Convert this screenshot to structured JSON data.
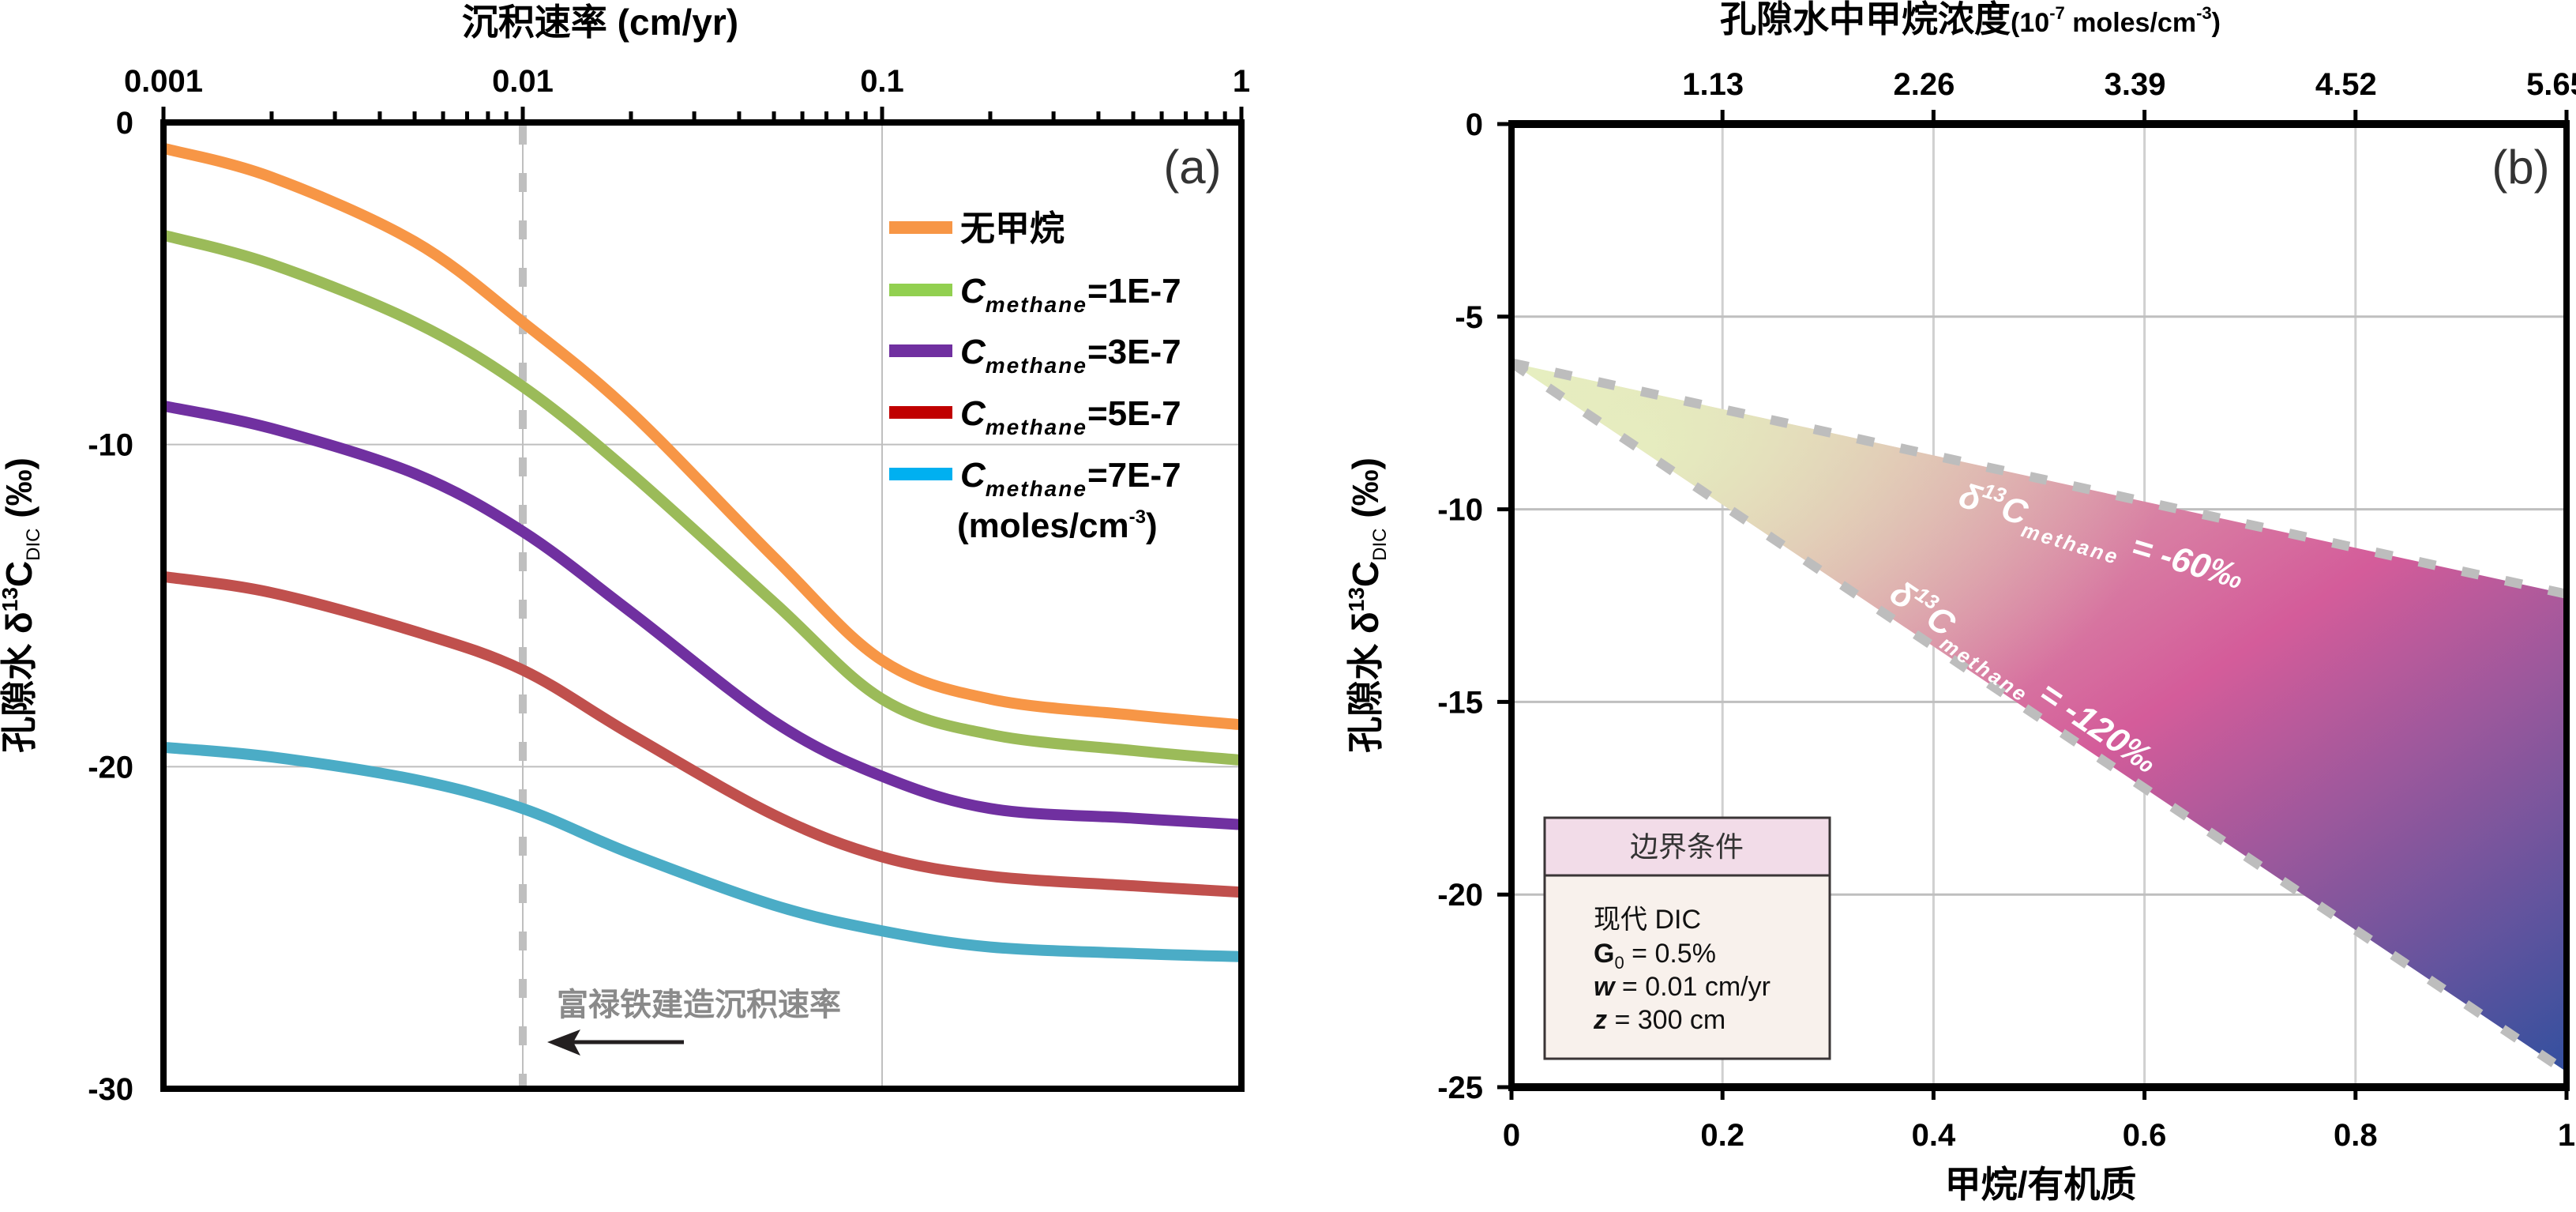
{
  "chart_data": [
    {
      "panel": "(a)",
      "type": "line",
      "xscale": "log",
      "xlabel": "沉积速率 (cm/yr)",
      "xlabel_position": "top",
      "ylabel": "孔隙水 δ13C_DIC (‰)",
      "ylabel_parts": {
        "prefix": "孔隙水 δ",
        "sup": "13",
        "main": "C",
        "sub": "DIC",
        "suffix": " (‰)"
      },
      "xlim": [
        0.001,
        1
      ],
      "ylim": [
        -30,
        0
      ],
      "xticks": [
        0.001,
        0.01,
        0.1,
        1
      ],
      "xtick_labels": [
        "0.001",
        "0.01",
        "0.1",
        "1"
      ],
      "yticks": [
        0,
        -10,
        -20,
        -30
      ],
      "ytick_labels": [
        "0",
        "-10",
        "-20",
        "-30"
      ],
      "grid": true,
      "x": [
        0.001,
        0.002,
        0.005,
        0.01,
        0.02,
        0.05,
        0.1,
        0.2,
        0.5,
        1
      ],
      "series": [
        {
          "name": "无甲烷",
          "color": "#F79646",
          "legend_color": "#F79646",
          "values": [
            -0.8,
            -1.7,
            -3.7,
            -6.2,
            -9.0,
            -13.5,
            -16.7,
            -17.9,
            -18.4,
            -18.7
          ]
        },
        {
          "name": "C_methane=1E-7",
          "color": "#9BBB59",
          "legend_color": "#92D050",
          "values": [
            -3.5,
            -4.4,
            -6.2,
            -8.2,
            -10.9,
            -14.9,
            -17.9,
            -19.0,
            -19.5,
            -19.8
          ]
        },
        {
          "name": "C_methane=3E-7",
          "color": "#7030A0",
          "legend_color": "#7030A0",
          "values": [
            -8.8,
            -9.5,
            -10.9,
            -12.7,
            -15.2,
            -18.6,
            -20.3,
            -21.3,
            -21.6,
            -21.8
          ]
        },
        {
          "name": "C_methane=5E-7",
          "color": "#C0504D",
          "legend_color": "#C00000",
          "values": [
            -14.1,
            -14.6,
            -15.8,
            -17.0,
            -19.0,
            -21.5,
            -22.8,
            -23.4,
            -23.7,
            -23.9
          ]
        },
        {
          "name": "C_methane=7E-7",
          "color": "#4BACC6",
          "legend_color": "#00B0F0",
          "values": [
            -19.4,
            -19.7,
            -20.4,
            -21.3,
            -22.7,
            -24.3,
            -25.1,
            -25.6,
            -25.8,
            -25.9
          ]
        }
      ],
      "legend": {
        "placement": "top-right",
        "entries": [
          {
            "main": "无甲烷",
            "sub": "",
            "tail": ""
          },
          {
            "main": "C",
            "sub": "methane",
            "tail": "=1E-7"
          },
          {
            "main": "C",
            "sub": "methane",
            "tail": "=3E-7"
          },
          {
            "main": "C",
            "sub": "methane",
            "tail": "=5E-7"
          },
          {
            "main": "C",
            "sub": "methane",
            "tail": "=7E-7"
          }
        ],
        "units": {
          "text": "(moles/cm",
          "sup": "-3",
          "close": ")"
        }
      },
      "reference_line": {
        "x": 0.01,
        "style": "dashed",
        "color": "#BFBFBF"
      },
      "annotation": {
        "text": "富禄铁建造沉积速率",
        "arrow": "left"
      }
    },
    {
      "panel": "(b)",
      "type": "area",
      "xlabel": "甲烷/有机质",
      "x2label": {
        "main": "孔隙水中甲烷浓度",
        "unit_prefix": "(10",
        "unit_sup1": "-7",
        "unit_mid": " moles/cm",
        "unit_sup2": "-3",
        "unit_close": ")"
      },
      "ylabel": "孔隙水 δ13C_DIC (‰)",
      "ylabel_parts": {
        "prefix": "孔隙水 δ",
        "sup": "13",
        "main": "C",
        "sub": "DIC",
        "suffix": " (‰)"
      },
      "xlim": [
        0,
        1
      ],
      "ylim": [
        -25,
        0
      ],
      "xticks": [
        0,
        0.2,
        0.4,
        0.6,
        0.8,
        1
      ],
      "xtick_labels": [
        "0",
        "0.2",
        "0.4",
        "0.6",
        "0.8",
        "1"
      ],
      "x2ticks": [
        0.2,
        0.4,
        0.6,
        0.8,
        1
      ],
      "x2tick_labels": [
        "1.13",
        "2.26",
        "3.39",
        "4.52",
        "5.65"
      ],
      "yticks": [
        0,
        -5,
        -10,
        -15,
        -20,
        -25
      ],
      "ytick_labels": [
        "0",
        "-5",
        "-10",
        "-15",
        "-20",
        "-25"
      ],
      "grid": true,
      "region": {
        "upper_bound": {
          "name": "δ13C_methane = -60‰",
          "x": [
            0,
            1
          ],
          "y": [
            -6.2,
            -12.2
          ]
        },
        "lower_bound": {
          "name": "δ13C_methane = -120‰",
          "x": [
            0,
            1
          ],
          "y": [
            -6.2,
            -24.6
          ]
        },
        "gradient_colors": [
          "#E6F0C0",
          "#D45C9A",
          "#33509F"
        ]
      },
      "bound_labels": [
        {
          "prefix": "δ",
          "sup": "13",
          "main": "C",
          "sub": "methane",
          "tail": " = -60‰"
        },
        {
          "prefix": "δ",
          "sup": "13",
          "main": "C",
          "sub": "methane",
          "tail": " = -120‰"
        }
      ],
      "boundary_box": {
        "title": "边界条件",
        "lines": [
          {
            "bold": "",
            "sub": "",
            "text": "现代 DIC"
          },
          {
            "bold": "G",
            "sub": "0",
            "text": " = 0.5%"
          },
          {
            "bold": "w",
            "sub": "",
            "text": " = 0.01 cm/yr"
          },
          {
            "bold": "z",
            "sub": "",
            "text": " = 300 cm"
          }
        ]
      }
    }
  ]
}
